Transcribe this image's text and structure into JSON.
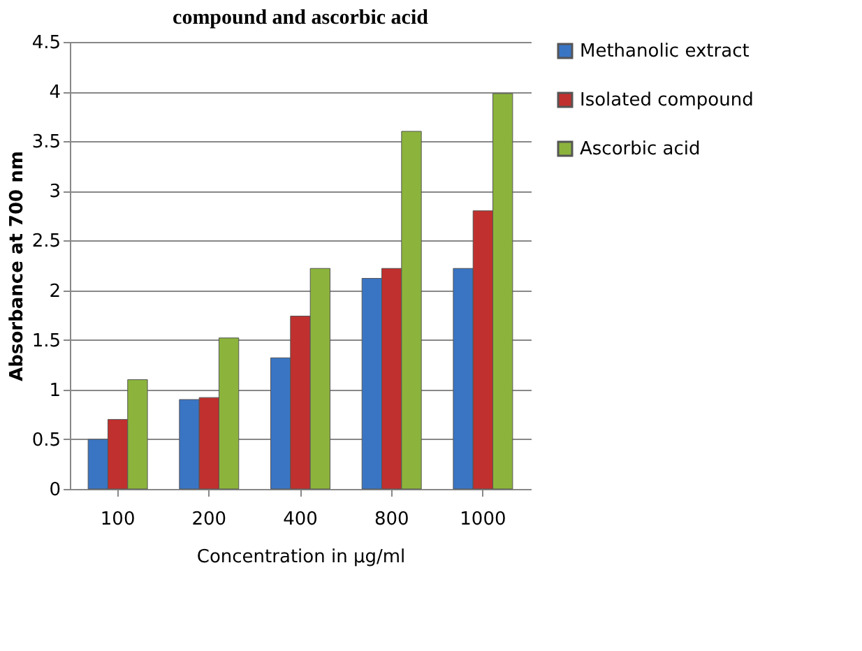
{
  "chart_data": {
    "type": "bar",
    "title": "compound and ascorbic acid",
    "xlabel": "Concentration in µg/ml",
    "ylabel": "Absorbance at 700 nm",
    "categories": [
      "100",
      "200",
      "400",
      "800",
      "1000"
    ],
    "series": [
      {
        "name": "Methanolic extract",
        "color": "#3a75c4",
        "values": [
          0.5,
          0.9,
          1.32,
          2.12,
          2.22
        ]
      },
      {
        "name": "Isolated compound",
        "color": "#c0302e",
        "values": [
          0.7,
          0.92,
          1.74,
          2.22,
          2.8
        ]
      },
      {
        "name": "Ascorbic acid",
        "color": "#8cb43c",
        "values": [
          1.1,
          1.52,
          2.22,
          3.6,
          3.98
        ]
      }
    ],
    "ylim": [
      0,
      4.5
    ],
    "yticks": [
      0,
      0.5,
      1,
      1.5,
      2,
      2.5,
      3,
      3.5,
      4,
      4.5
    ],
    "grid": "y",
    "legend": "right"
  }
}
